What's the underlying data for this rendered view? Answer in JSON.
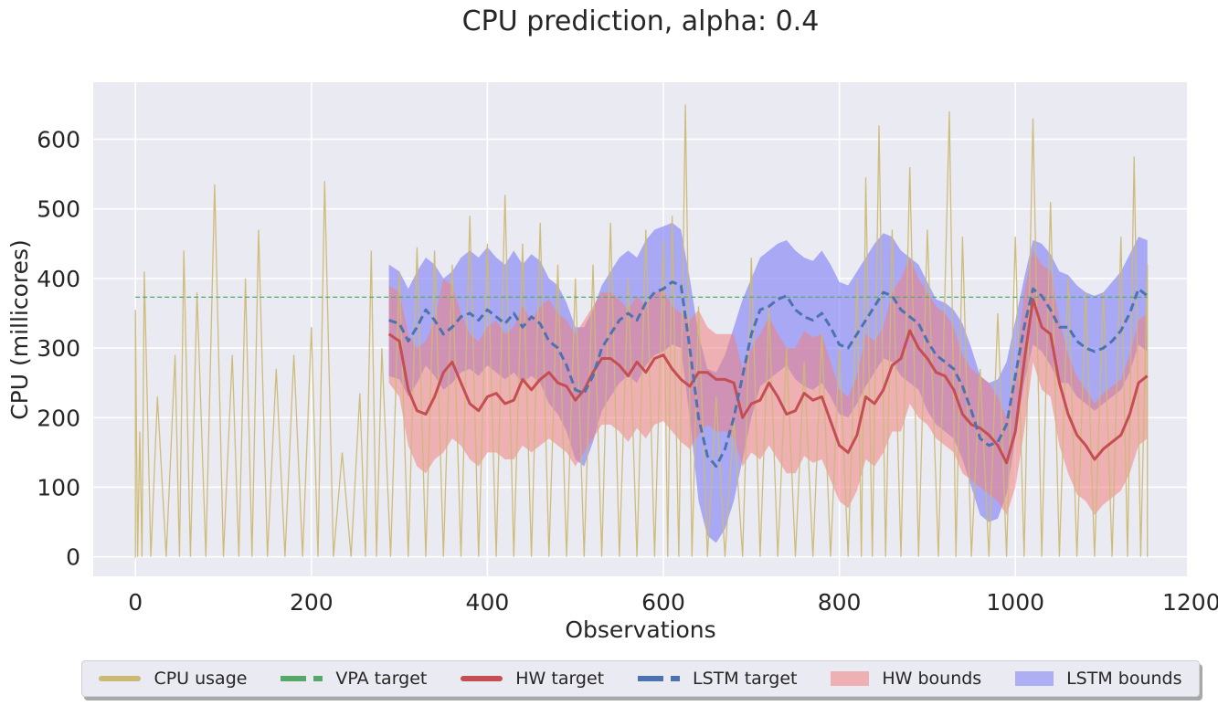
{
  "chart_data": {
    "type": "line",
    "title": "CPU prediction, alpha: 0.4",
    "xlabel": "Observations",
    "ylabel": "CPU (millicores)",
    "xlim": [
      -48,
      1195
    ],
    "ylim": [
      -28,
      682
    ],
    "xticks": [
      0,
      200,
      400,
      600,
      800,
      1000,
      1200
    ],
    "yticks": [
      0,
      100,
      200,
      300,
      400,
      500,
      600
    ],
    "grid": true,
    "legend_position": "bottom, below chart",
    "colors": {
      "cpu_usage": "#ccb974",
      "vpa_target": "#55a868",
      "hw_target": "#c44e52",
      "lstm_target": "#4c72b0",
      "hw_bounds": "#f08080",
      "lstm_bounds": "#7b7bf5",
      "plot_bg": "#eaeaf2"
    },
    "series": [
      {
        "name": "CPU usage",
        "style": "solid-thin",
        "description_points": "approx. spiky usage, 0-650 millicores",
        "peaks": [
          [
            0,
            355
          ],
          [
            5,
            180
          ],
          [
            10,
            410
          ],
          [
            25,
            230
          ],
          [
            45,
            290
          ],
          [
            55,
            440
          ],
          [
            70,
            380
          ],
          [
            90,
            535
          ],
          [
            110,
            290
          ],
          [
            125,
            400
          ],
          [
            140,
            470
          ],
          [
            160,
            270
          ],
          [
            180,
            290
          ],
          [
            200,
            330
          ],
          [
            215,
            540
          ],
          [
            235,
            150
          ],
          [
            255,
            235
          ],
          [
            268,
            440
          ],
          [
            280,
            300
          ],
          [
            300,
            410
          ],
          [
            320,
            445
          ],
          [
            340,
            440
          ],
          [
            360,
            420
          ],
          [
            380,
            490
          ],
          [
            400,
            450
          ],
          [
            420,
            520
          ],
          [
            440,
            450
          ],
          [
            460,
            480
          ],
          [
            480,
            420
          ],
          [
            500,
            400
          ],
          [
            520,
            420
          ],
          [
            540,
            480
          ],
          [
            560,
            400
          ],
          [
            580,
            470
          ],
          [
            600,
            455
          ],
          [
            610,
            490
          ],
          [
            625,
            650
          ],
          [
            640,
            360
          ],
          [
            660,
            230
          ],
          [
            680,
            200
          ],
          [
            700,
            430
          ],
          [
            720,
            360
          ],
          [
            740,
            300
          ],
          [
            760,
            280
          ],
          [
            780,
            320
          ],
          [
            800,
            300
          ],
          [
            820,
            400
          ],
          [
            830,
            545
          ],
          [
            845,
            620
          ],
          [
            860,
            470
          ],
          [
            880,
            560
          ],
          [
            900,
            470
          ],
          [
            925,
            640
          ],
          [
            940,
            460
          ],
          [
            960,
            270
          ],
          [
            980,
            350
          ],
          [
            1000,
            460
          ],
          [
            1020,
            630
          ],
          [
            1040,
            510
          ],
          [
            1060,
            400
          ],
          [
            1080,
            380
          ],
          [
            1100,
            380
          ],
          [
            1120,
            460
          ],
          [
            1135,
            575
          ],
          [
            1150,
            420
          ]
        ]
      },
      {
        "name": "VPA target",
        "style": "dashed",
        "x": [
          0,
          1150
        ],
        "values": [
          373,
          373
        ]
      },
      {
        "name": "HW target",
        "style": "solid-thick",
        "x": [
          288,
          300,
          310,
          320,
          330,
          340,
          350,
          360,
          370,
          380,
          390,
          400,
          410,
          420,
          430,
          440,
          450,
          460,
          470,
          480,
          490,
          500,
          510,
          520,
          530,
          540,
          550,
          560,
          570,
          580,
          590,
          600,
          610,
          620,
          630,
          640,
          650,
          660,
          670,
          680,
          690,
          700,
          710,
          720,
          730,
          740,
          750,
          760,
          770,
          780,
          790,
          800,
          810,
          820,
          830,
          840,
          850,
          860,
          870,
          880,
          890,
          900,
          910,
          920,
          930,
          940,
          950,
          960,
          970,
          980,
          990,
          1000,
          1010,
          1020,
          1030,
          1040,
          1050,
          1060,
          1070,
          1080,
          1090,
          1100,
          1110,
          1120,
          1130,
          1140,
          1150
        ],
        "values": [
          320,
          310,
          240,
          210,
          205,
          230,
          265,
          280,
          250,
          220,
          210,
          230,
          235,
          220,
          225,
          255,
          240,
          255,
          265,
          250,
          245,
          225,
          240,
          265,
          285,
          285,
          275,
          260,
          280,
          265,
          285,
          290,
          270,
          255,
          245,
          265,
          265,
          255,
          255,
          250,
          200,
          220,
          225,
          250,
          230,
          205,
          210,
          235,
          225,
          230,
          195,
          160,
          150,
          175,
          230,
          220,
          240,
          275,
          285,
          325,
          300,
          285,
          265,
          260,
          240,
          205,
          190,
          185,
          175,
          160,
          135,
          180,
          280,
          370,
          330,
          320,
          250,
          205,
          175,
          160,
          140,
          155,
          165,
          175,
          205,
          250,
          260
        ]
      },
      {
        "name": "LSTM target",
        "style": "dashed",
        "x": [
          288,
          300,
          310,
          320,
          330,
          340,
          350,
          360,
          370,
          380,
          390,
          400,
          410,
          420,
          430,
          440,
          450,
          460,
          470,
          480,
          490,
          500,
          510,
          520,
          530,
          540,
          550,
          560,
          570,
          580,
          590,
          600,
          610,
          620,
          630,
          640,
          650,
          660,
          670,
          680,
          690,
          700,
          710,
          720,
          730,
          740,
          750,
          760,
          770,
          780,
          790,
          800,
          810,
          820,
          830,
          840,
          850,
          860,
          870,
          880,
          890,
          900,
          910,
          920,
          930,
          940,
          950,
          960,
          970,
          980,
          990,
          1000,
          1010,
          1020,
          1030,
          1040,
          1050,
          1060,
          1070,
          1080,
          1090,
          1100,
          1110,
          1120,
          1130,
          1140,
          1150
        ],
        "values": [
          340,
          335,
          310,
          330,
          355,
          340,
          320,
          330,
          345,
          350,
          340,
          355,
          345,
          335,
          350,
          330,
          345,
          335,
          310,
          300,
          275,
          240,
          235,
          260,
          300,
          320,
          340,
          350,
          340,
          365,
          380,
          385,
          395,
          390,
          300,
          200,
          145,
          130,
          155,
          200,
          260,
          320,
          355,
          360,
          370,
          375,
          355,
          345,
          340,
          350,
          330,
          305,
          300,
          320,
          340,
          360,
          380,
          375,
          355,
          345,
          335,
          310,
          290,
          280,
          270,
          245,
          210,
          170,
          160,
          165,
          190,
          260,
          330,
          385,
          375,
          355,
          330,
          330,
          310,
          300,
          295,
          300,
          310,
          325,
          350,
          385,
          375
        ]
      },
      {
        "name": "HW bounds",
        "style": "band",
        "x": [
          288,
          300,
          310,
          320,
          330,
          340,
          350,
          360,
          370,
          380,
          390,
          400,
          410,
          420,
          430,
          440,
          450,
          460,
          470,
          480,
          490,
          500,
          510,
          520,
          530,
          540,
          550,
          560,
          570,
          580,
          590,
          600,
          610,
          620,
          630,
          640,
          650,
          660,
          670,
          680,
          690,
          700,
          710,
          720,
          730,
          740,
          750,
          760,
          770,
          780,
          790,
          800,
          810,
          820,
          830,
          840,
          850,
          860,
          870,
          880,
          890,
          900,
          910,
          920,
          930,
          940,
          950,
          960,
          970,
          980,
          990,
          1000,
          1010,
          1020,
          1030,
          1040,
          1050,
          1060,
          1070,
          1080,
          1090,
          1100,
          1110,
          1120,
          1130,
          1140,
          1150
        ],
        "upper": [
          390,
          380,
          320,
          300,
          310,
          340,
          400,
          390,
          350,
          320,
          310,
          330,
          340,
          320,
          330,
          360,
          340,
          360,
          370,
          350,
          340,
          320,
          340,
          360,
          380,
          380,
          370,
          355,
          375,
          360,
          380,
          385,
          360,
          350,
          340,
          355,
          330,
          320,
          320,
          320,
          270,
          300,
          320,
          345,
          320,
          300,
          300,
          325,
          315,
          320,
          280,
          240,
          230,
          260,
          320,
          310,
          330,
          380,
          400,
          430,
          400,
          380,
          360,
          350,
          330,
          290,
          270,
          260,
          250,
          230,
          200,
          260,
          380,
          440,
          420,
          410,
          340,
          290,
          260,
          240,
          220,
          235,
          245,
          255,
          290,
          340,
          350
        ],
        "lower": [
          250,
          230,
          160,
          130,
          120,
          140,
          150,
          170,
          160,
          140,
          130,
          150,
          150,
          140,
          140,
          160,
          150,
          160,
          170,
          160,
          150,
          130,
          150,
          170,
          190,
          190,
          180,
          165,
          185,
          170,
          190,
          195,
          180,
          165,
          155,
          175,
          190,
          180,
          180,
          170,
          130,
          150,
          140,
          160,
          140,
          120,
          120,
          145,
          135,
          140,
          110,
          80,
          70,
          95,
          140,
          130,
          150,
          180,
          180,
          220,
          200,
          190,
          170,
          160,
          150,
          120,
          110,
          100,
          90,
          80,
          60,
          100,
          180,
          280,
          240,
          230,
          160,
          120,
          90,
          80,
          60,
          75,
          85,
          95,
          120,
          160,
          170
        ]
      },
      {
        "name": "LSTM bounds",
        "style": "band",
        "x": [
          288,
          300,
          310,
          320,
          330,
          340,
          350,
          360,
          370,
          380,
          390,
          400,
          410,
          420,
          430,
          440,
          450,
          460,
          470,
          480,
          490,
          500,
          510,
          520,
          530,
          540,
          550,
          560,
          570,
          580,
          590,
          600,
          610,
          620,
          630,
          640,
          650,
          660,
          670,
          680,
          690,
          700,
          710,
          720,
          730,
          740,
          750,
          760,
          770,
          780,
          790,
          800,
          810,
          820,
          830,
          840,
          850,
          860,
          870,
          880,
          890,
          900,
          910,
          920,
          930,
          940,
          950,
          960,
          970,
          980,
          990,
          1000,
          1010,
          1020,
          1030,
          1040,
          1050,
          1060,
          1070,
          1080,
          1090,
          1100,
          1110,
          1120,
          1130,
          1140,
          1150
        ],
        "upper": [
          420,
          410,
          385,
          410,
          430,
          420,
          400,
          410,
          430,
          440,
          430,
          445,
          430,
          420,
          440,
          420,
          435,
          425,
          400,
          390,
          365,
          330,
          330,
          355,
          390,
          410,
          430,
          440,
          430,
          455,
          470,
          475,
          480,
          470,
          400,
          320,
          270,
          265,
          290,
          330,
          370,
          400,
          430,
          440,
          450,
          455,
          440,
          430,
          425,
          440,
          420,
          395,
          390,
          410,
          430,
          450,
          465,
          460,
          440,
          430,
          420,
          395,
          370,
          365,
          355,
          335,
          300,
          260,
          250,
          255,
          280,
          340,
          400,
          455,
          450,
          435,
          410,
          405,
          390,
          380,
          375,
          380,
          395,
          410,
          435,
          460,
          455
        ],
        "lower": [
          260,
          255,
          230,
          250,
          275,
          260,
          240,
          250,
          265,
          270,
          260,
          275,
          265,
          255,
          265,
          250,
          260,
          250,
          220,
          205,
          180,
          140,
          130,
          165,
          210,
          230,
          250,
          260,
          250,
          275,
          290,
          295,
          305,
          300,
          200,
          80,
          30,
          20,
          40,
          80,
          140,
          200,
          245,
          255,
          265,
          275,
          255,
          245,
          240,
          250,
          230,
          205,
          200,
          220,
          245,
          265,
          285,
          280,
          260,
          250,
          240,
          210,
          190,
          180,
          170,
          140,
          100,
          60,
          50,
          55,
          90,
          170,
          250,
          305,
          295,
          275,
          250,
          250,
          230,
          220,
          210,
          220,
          230,
          240,
          265,
          305,
          295
        ]
      }
    ]
  },
  "legend": {
    "items": [
      {
        "label": "CPU usage"
      },
      {
        "label": "VPA target"
      },
      {
        "label": "HW target"
      },
      {
        "label": "LSTM target"
      },
      {
        "label": "HW bounds"
      },
      {
        "label": "LSTM bounds"
      }
    ]
  }
}
